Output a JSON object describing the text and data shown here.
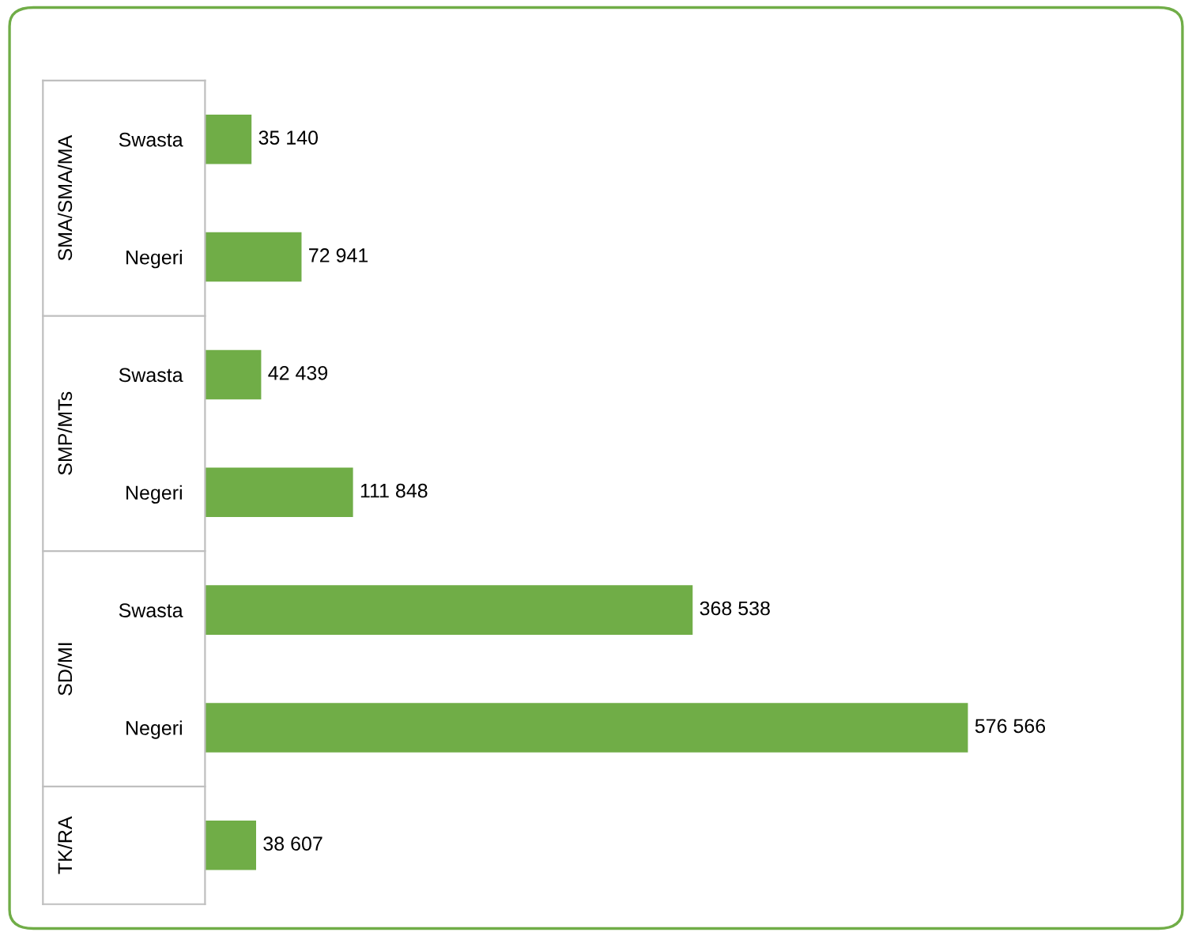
{
  "chart_data": {
    "type": "bar",
    "orientation": "horizontal",
    "categories": [
      "Swasta",
      "Negeri",
      "Swasta",
      "Negeri",
      "Swasta",
      "Negeri",
      null
    ],
    "values": [
      35140,
      72941,
      42439,
      111848,
      368538,
      576566,
      38607
    ],
    "value_labels": [
      "35 140",
      "72 941",
      "42 439",
      "111 848",
      "368 538",
      "576 566",
      "38 607"
    ],
    "color": "#70ad47",
    "annotations": [
      "SMA/SMA/MA",
      "SMP/MTs",
      "SD/MI",
      "TK/RA"
    ],
    "grid": false,
    "legend": false
  }
}
